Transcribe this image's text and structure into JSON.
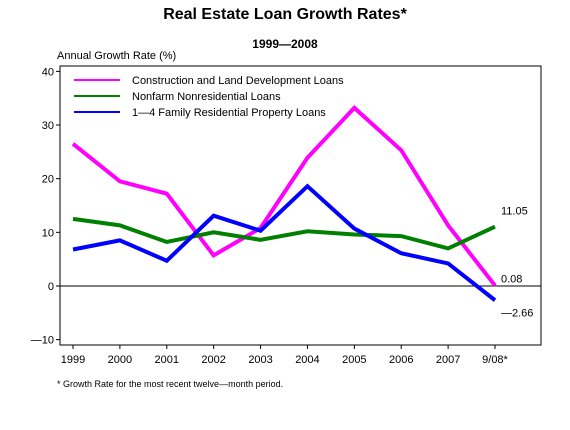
{
  "chart_data": {
    "type": "line",
    "title": "Real Estate Loan Growth Rates*",
    "subtitle": "1999—2008",
    "ylabel": "Annual Growth Rate (%)",
    "xlabel": "",
    "categories": [
      "1999",
      "2000",
      "2001",
      "2002",
      "2003",
      "2004",
      "2005",
      "2006",
      "2007",
      "9/08*"
    ],
    "ylim": [
      -11,
      41
    ],
    "yticks": [
      -10,
      0,
      10,
      20,
      30,
      40
    ],
    "grid": false,
    "legend_position": "top-left",
    "series": [
      {
        "name": "Construction and Land Development Loans",
        "color": "#ff00ff",
        "values": [
          26.5,
          19.5,
          17.2,
          5.7,
          10.8,
          23.9,
          33.2,
          25.3,
          11.3,
          0.08
        ],
        "end_label": "0.08"
      },
      {
        "name": "Nonfarm Nonresidential Loans",
        "color": "#008000",
        "values": [
          12.5,
          11.3,
          8.2,
          10.0,
          8.6,
          10.2,
          9.6,
          9.3,
          7.0,
          11.05
        ],
        "end_label": "11.05"
      },
      {
        "name": "1—4 Family Residential Property Loans",
        "color": "#0000ff",
        "values": [
          6.8,
          8.5,
          4.7,
          13.1,
          10.3,
          18.6,
          10.7,
          6.1,
          4.2,
          -2.66
        ],
        "end_label": "—2.66"
      }
    ],
    "footnote": "* Growth Rate for the most recent twelve—month period."
  }
}
